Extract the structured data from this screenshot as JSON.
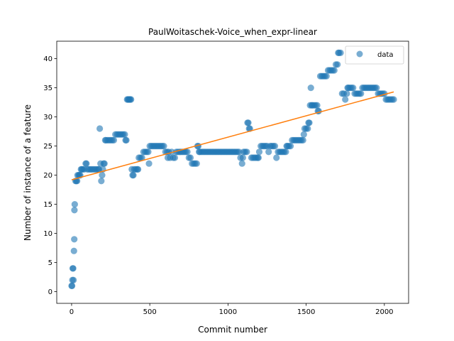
{
  "chart_data": {
    "type": "scatter",
    "title": "PaulWoitaschek-Voice_when_expr-linear",
    "xlabel": "Commit number",
    "ylabel": "Number of instance of a feature",
    "xlim": [
      -95,
      2155
    ],
    "ylim": [
      -2,
      43
    ],
    "xticks": [
      0,
      500,
      1000,
      1500,
      2000
    ],
    "yticks": [
      0,
      5,
      10,
      15,
      20,
      25,
      30,
      35,
      40
    ],
    "grid": false,
    "legend_position": "top-right",
    "colors": {
      "data": "#1f77b4",
      "fit": "#ff7f0e"
    },
    "series": [
      {
        "name": "data",
        "kind": "scatter",
        "points": [
          [
            0,
            1
          ],
          [
            3,
            1
          ],
          [
            5,
            2
          ],
          [
            7,
            4
          ],
          [
            10,
            4
          ],
          [
            12,
            2
          ],
          [
            15,
            7
          ],
          [
            17,
            9
          ],
          [
            18,
            14
          ],
          [
            20,
            15
          ],
          [
            25,
            19
          ],
          [
            30,
            19
          ],
          [
            35,
            19
          ],
          [
            38,
            20
          ],
          [
            45,
            20
          ],
          [
            50,
            20
          ],
          [
            55,
            20
          ],
          [
            60,
            21
          ],
          [
            65,
            21
          ],
          [
            70,
            21
          ],
          [
            80,
            21
          ],
          [
            90,
            22
          ],
          [
            95,
            22
          ],
          [
            100,
            21
          ],
          [
            110,
            21
          ],
          [
            120,
            21
          ],
          [
            130,
            21
          ],
          [
            140,
            21
          ],
          [
            150,
            21
          ],
          [
            160,
            21
          ],
          [
            170,
            21
          ],
          [
            175,
            21
          ],
          [
            180,
            28
          ],
          [
            185,
            22
          ],
          [
            190,
            19
          ],
          [
            195,
            20
          ],
          [
            200,
            21
          ],
          [
            205,
            22
          ],
          [
            210,
            22
          ],
          [
            215,
            26
          ],
          [
            220,
            26
          ],
          [
            230,
            26
          ],
          [
            240,
            26
          ],
          [
            250,
            26
          ],
          [
            260,
            26
          ],
          [
            270,
            26
          ],
          [
            280,
            27
          ],
          [
            290,
            27
          ],
          [
            300,
            27
          ],
          [
            310,
            27
          ],
          [
            320,
            27
          ],
          [
            330,
            27
          ],
          [
            340,
            27
          ],
          [
            345,
            26
          ],
          [
            350,
            26
          ],
          [
            355,
            33
          ],
          [
            360,
            33
          ],
          [
            365,
            33
          ],
          [
            370,
            33
          ],
          [
            375,
            33
          ],
          [
            380,
            33
          ],
          [
            385,
            21
          ],
          [
            390,
            20
          ],
          [
            395,
            20
          ],
          [
            400,
            21
          ],
          [
            410,
            21
          ],
          [
            420,
            21
          ],
          [
            425,
            21
          ],
          [
            430,
            23
          ],
          [
            440,
            23
          ],
          [
            450,
            23
          ],
          [
            460,
            24
          ],
          [
            470,
            24
          ],
          [
            480,
            24
          ],
          [
            490,
            24
          ],
          [
            495,
            22
          ],
          [
            500,
            25
          ],
          [
            510,
            25
          ],
          [
            520,
            25
          ],
          [
            530,
            25
          ],
          [
            540,
            25
          ],
          [
            550,
            25
          ],
          [
            560,
            25
          ],
          [
            570,
            25
          ],
          [
            580,
            25
          ],
          [
            590,
            25
          ],
          [
            600,
            24
          ],
          [
            610,
            24
          ],
          [
            615,
            23
          ],
          [
            620,
            24
          ],
          [
            630,
            23
          ],
          [
            640,
            24
          ],
          [
            650,
            23
          ],
          [
            660,
            23
          ],
          [
            670,
            24
          ],
          [
            680,
            24
          ],
          [
            690,
            24
          ],
          [
            700,
            24
          ],
          [
            710,
            24
          ],
          [
            720,
            24
          ],
          [
            730,
            24
          ],
          [
            740,
            24
          ],
          [
            750,
            23
          ],
          [
            760,
            23
          ],
          [
            770,
            22
          ],
          [
            780,
            22
          ],
          [
            790,
            22
          ],
          [
            800,
            22
          ],
          [
            805,
            25
          ],
          [
            810,
            25
          ],
          [
            815,
            24
          ],
          [
            820,
            24
          ],
          [
            830,
            24
          ],
          [
            840,
            24
          ],
          [
            850,
            24
          ],
          [
            860,
            24
          ],
          [
            870,
            24
          ],
          [
            880,
            24
          ],
          [
            890,
            24
          ],
          [
            900,
            24
          ],
          [
            910,
            24
          ],
          [
            920,
            24
          ],
          [
            930,
            24
          ],
          [
            940,
            24
          ],
          [
            950,
            24
          ],
          [
            960,
            24
          ],
          [
            970,
            24
          ],
          [
            980,
            24
          ],
          [
            990,
            24
          ],
          [
            1000,
            24
          ],
          [
            1010,
            24
          ],
          [
            1020,
            24
          ],
          [
            1030,
            24
          ],
          [
            1040,
            24
          ],
          [
            1050,
            24
          ],
          [
            1060,
            24
          ],
          [
            1070,
            24
          ],
          [
            1080,
            23
          ],
          [
            1090,
            22
          ],
          [
            1095,
            23
          ],
          [
            1100,
            24
          ],
          [
            1110,
            24
          ],
          [
            1120,
            24
          ],
          [
            1125,
            29
          ],
          [
            1130,
            29
          ],
          [
            1135,
            28
          ],
          [
            1140,
            28
          ],
          [
            1150,
            23
          ],
          [
            1160,
            23
          ],
          [
            1170,
            23
          ],
          [
            1180,
            23
          ],
          [
            1190,
            23
          ],
          [
            1195,
            23
          ],
          [
            1200,
            24
          ],
          [
            1210,
            25
          ],
          [
            1220,
            25
          ],
          [
            1230,
            25
          ],
          [
            1240,
            25
          ],
          [
            1250,
            25
          ],
          [
            1260,
            24
          ],
          [
            1270,
            25
          ],
          [
            1280,
            25
          ],
          [
            1290,
            25
          ],
          [
            1300,
            25
          ],
          [
            1310,
            23
          ],
          [
            1320,
            24
          ],
          [
            1330,
            24
          ],
          [
            1340,
            24
          ],
          [
            1350,
            24
          ],
          [
            1360,
            24
          ],
          [
            1370,
            24
          ],
          [
            1375,
            25
          ],
          [
            1380,
            25
          ],
          [
            1390,
            25
          ],
          [
            1400,
            25
          ],
          [
            1410,
            26
          ],
          [
            1420,
            26
          ],
          [
            1430,
            26
          ],
          [
            1440,
            26
          ],
          [
            1450,
            26
          ],
          [
            1460,
            26
          ],
          [
            1470,
            26
          ],
          [
            1480,
            26
          ],
          [
            1485,
            27
          ],
          [
            1490,
            28
          ],
          [
            1500,
            28
          ],
          [
            1510,
            28
          ],
          [
            1515,
            29
          ],
          [
            1520,
            29
          ],
          [
            1525,
            32
          ],
          [
            1530,
            35
          ],
          [
            1535,
            32
          ],
          [
            1540,
            32
          ],
          [
            1550,
            32
          ],
          [
            1560,
            32
          ],
          [
            1570,
            32
          ],
          [
            1575,
            31
          ],
          [
            1580,
            31
          ],
          [
            1590,
            37
          ],
          [
            1600,
            37
          ],
          [
            1610,
            37
          ],
          [
            1620,
            37
          ],
          [
            1630,
            37
          ],
          [
            1640,
            38
          ],
          [
            1650,
            38
          ],
          [
            1660,
            38
          ],
          [
            1670,
            38
          ],
          [
            1680,
            38
          ],
          [
            1690,
            39
          ],
          [
            1700,
            39
          ],
          [
            1705,
            41
          ],
          [
            1710,
            41
          ],
          [
            1720,
            41
          ],
          [
            1730,
            34
          ],
          [
            1740,
            34
          ],
          [
            1750,
            33
          ],
          [
            1760,
            34
          ],
          [
            1765,
            35
          ],
          [
            1770,
            35
          ],
          [
            1780,
            35
          ],
          [
            1790,
            35
          ],
          [
            1800,
            35
          ],
          [
            1810,
            34
          ],
          [
            1820,
            34
          ],
          [
            1830,
            34
          ],
          [
            1840,
            34
          ],
          [
            1850,
            34
          ],
          [
            1860,
            35
          ],
          [
            1870,
            35
          ],
          [
            1880,
            35
          ],
          [
            1890,
            35
          ],
          [
            1900,
            35
          ],
          [
            1910,
            35
          ],
          [
            1920,
            35
          ],
          [
            1930,
            35
          ],
          [
            1940,
            35
          ],
          [
            1950,
            35
          ],
          [
            1960,
            34
          ],
          [
            1970,
            34
          ],
          [
            1980,
            34
          ],
          [
            1990,
            34
          ],
          [
            2000,
            34
          ],
          [
            2010,
            33
          ],
          [
            2020,
            33
          ],
          [
            2030,
            33
          ],
          [
            2040,
            33
          ],
          [
            2050,
            33
          ],
          [
            2060,
            33
          ]
        ]
      },
      {
        "name": "",
        "kind": "line",
        "points": [
          [
            0,
            19.2
          ],
          [
            2060,
            34.3
          ]
        ]
      }
    ]
  }
}
